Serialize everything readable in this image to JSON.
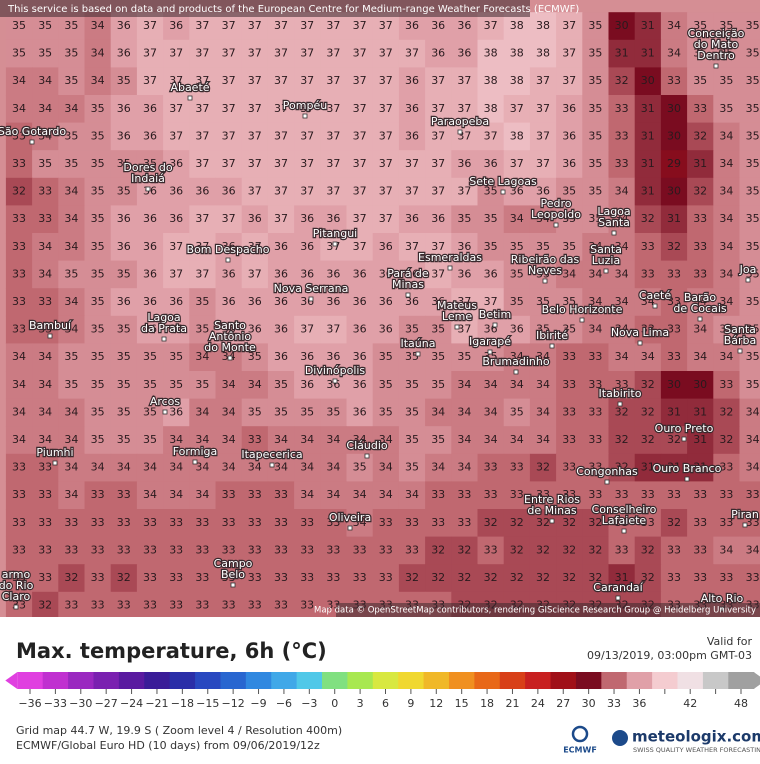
{
  "notice": "This service is based on data and products of the European Centre for Medium-range Weather Forecasts (ECMWF)",
  "attribution": "Map data © OpenStreetMap contributors, rendering GIScience Research Group @ Heidelberg University",
  "grid": {
    "rows": [
      [
        35,
        35,
        35,
        34,
        36,
        37,
        36,
        37,
        37,
        37,
        37,
        37,
        37,
        37,
        37,
        36,
        36,
        36,
        37,
        38,
        38,
        37,
        35,
        30,
        31,
        34,
        35,
        35,
        35
      ],
      [
        35,
        35,
        35,
        34,
        36,
        37,
        37,
        37,
        37,
        37,
        37,
        37,
        37,
        37,
        37,
        37,
        36,
        36,
        38,
        38,
        38,
        37,
        35,
        31,
        31,
        34,
        35,
        35,
        35
      ],
      [
        34,
        34,
        35,
        34,
        35,
        37,
        37,
        37,
        37,
        37,
        37,
        37,
        37,
        37,
        37,
        36,
        37,
        37,
        38,
        38,
        37,
        37,
        35,
        32,
        30,
        33,
        35,
        35,
        35
      ],
      [
        34,
        34,
        34,
        35,
        36,
        36,
        37,
        37,
        37,
        37,
        37,
        37,
        37,
        37,
        37,
        36,
        37,
        37,
        38,
        37,
        37,
        36,
        35,
        33,
        31,
        30,
        33,
        35,
        35
      ],
      [
        33,
        34,
        35,
        35,
        36,
        36,
        37,
        37,
        37,
        37,
        37,
        37,
        37,
        37,
        37,
        36,
        37,
        37,
        37,
        38,
        37,
        36,
        35,
        33,
        31,
        30,
        32,
        34,
        35
      ],
      [
        33,
        35,
        35,
        35,
        35,
        35,
        36,
        37,
        37,
        37,
        37,
        37,
        37,
        37,
        37,
        37,
        37,
        36,
        36,
        37,
        37,
        36,
        35,
        33,
        31,
        29,
        31,
        34,
        35
      ],
      [
        32,
        33,
        34,
        35,
        35,
        36,
        36,
        36,
        36,
        37,
        37,
        37,
        37,
        37,
        37,
        37,
        37,
        37,
        35,
        36,
        36,
        35,
        35,
        34,
        31,
        30,
        32,
        34,
        35
      ],
      [
        33,
        33,
        34,
        35,
        36,
        36,
        36,
        37,
        37,
        36,
        37,
        36,
        36,
        37,
        37,
        36,
        36,
        35,
        35,
        34,
        34,
        35,
        35,
        34,
        32,
        31,
        33,
        34,
        35
      ],
      [
        33,
        34,
        34,
        35,
        36,
        36,
        37,
        37,
        36,
        37,
        36,
        36,
        37,
        37,
        36,
        37,
        37,
        36,
        35,
        35,
        35,
        35,
        34,
        34,
        33,
        32,
        33,
        34,
        35
      ],
      [
        33,
        34,
        35,
        35,
        35,
        36,
        37,
        37,
        36,
        37,
        36,
        36,
        36,
        36,
        36,
        36,
        37,
        36,
        36,
        35,
        35,
        34,
        34,
        34,
        33,
        33,
        33,
        34,
        35
      ],
      [
        33,
        33,
        34,
        35,
        36,
        36,
        36,
        35,
        36,
        36,
        36,
        36,
        36,
        36,
        36,
        36,
        36,
        37,
        37,
        35,
        35,
        35,
        34,
        34,
        34,
        33,
        34,
        34,
        35
      ],
      [
        33,
        33,
        34,
        35,
        35,
        36,
        36,
        35,
        36,
        36,
        36,
        37,
        37,
        36,
        36,
        35,
        35,
        37,
        36,
        36,
        35,
        35,
        34,
        34,
        33,
        33,
        34,
        35,
        35
      ],
      [
        34,
        34,
        35,
        35,
        35,
        35,
        35,
        34,
        34,
        35,
        36,
        36,
        36,
        36,
        35,
        35,
        35,
        35,
        35,
        34,
        34,
        33,
        33,
        34,
        34,
        33,
        34,
        34,
        35
      ],
      [
        34,
        34,
        35,
        35,
        35,
        35,
        35,
        35,
        34,
        34,
        35,
        36,
        36,
        36,
        35,
        35,
        35,
        34,
        34,
        34,
        34,
        33,
        33,
        33,
        32,
        30,
        30,
        33,
        35
      ],
      [
        34,
        34,
        34,
        35,
        35,
        35,
        36,
        34,
        34,
        35,
        35,
        35,
        35,
        36,
        35,
        35,
        34,
        34,
        34,
        35,
        34,
        33,
        33,
        32,
        32,
        31,
        31,
        32,
        34
      ],
      [
        34,
        34,
        34,
        35,
        35,
        35,
        34,
        34,
        34,
        33,
        34,
        34,
        34,
        34,
        34,
        35,
        35,
        34,
        34,
        34,
        34,
        33,
        33,
        32,
        32,
        32,
        31,
        32,
        34
      ],
      [
        33,
        33,
        34,
        34,
        34,
        34,
        34,
        34,
        34,
        34,
        34,
        34,
        34,
        35,
        34,
        35,
        34,
        34,
        33,
        33,
        32,
        33,
        33,
        32,
        31,
        31,
        31,
        33,
        34
      ],
      [
        33,
        33,
        34,
        33,
        33,
        34,
        34,
        34,
        33,
        33,
        33,
        34,
        34,
        34,
        34,
        34,
        33,
        33,
        33,
        33,
        33,
        33,
        33,
        33,
        33,
        33,
        33,
        33,
        33
      ],
      [
        33,
        33,
        33,
        33,
        33,
        33,
        33,
        33,
        33,
        33,
        33,
        33,
        33,
        34,
        33,
        33,
        33,
        33,
        32,
        32,
        32,
        32,
        32,
        33,
        33,
        32,
        33,
        33,
        33
      ],
      [
        33,
        33,
        33,
        33,
        33,
        33,
        33,
        33,
        33,
        33,
        33,
        33,
        33,
        33,
        33,
        33,
        32,
        32,
        33,
        32,
        32,
        32,
        32,
        33,
        32,
        33,
        33,
        34,
        34
      ],
      [
        33,
        33,
        32,
        33,
        32,
        33,
        33,
        33,
        33,
        33,
        33,
        33,
        33,
        33,
        33,
        32,
        32,
        32,
        32,
        32,
        32,
        32,
        32,
        31,
        32,
        33,
        33,
        33,
        33
      ],
      [
        33,
        32,
        33,
        33,
        33,
        33,
        33,
        33,
        33,
        33,
        33,
        33,
        33,
        33,
        33,
        33,
        33,
        32,
        32,
        32,
        32,
        32,
        32,
        32,
        32,
        33,
        33,
        33,
        33
      ]
    ]
  },
  "towns": [
    {
      "lines": [
        "Abaeté"
      ]
    },
    {
      "lines": [
        "Pompéu"
      ]
    },
    {
      "lines": [
        "Paraopeba"
      ]
    },
    {
      "lines": [
        "São Gotardo"
      ]
    },
    {
      "lines": [
        "Dores do",
        "Indaiá"
      ]
    },
    {
      "lines": [
        "Sete Lagoas"
      ]
    },
    {
      "lines": [
        "Pedro",
        "Leopoldo"
      ]
    },
    {
      "lines": [
        "Lagoa",
        "Santa"
      ]
    },
    {
      "lines": [
        "Bom Despacho"
      ]
    },
    {
      "lines": [
        "Pitangui"
      ]
    },
    {
      "lines": [
        "Esmeraldas"
      ]
    },
    {
      "lines": [
        "Ribeirão das",
        "Neves"
      ]
    },
    {
      "lines": [
        "Santa",
        "Luzia"
      ]
    },
    {
      "lines": [
        "Nova Serrana"
      ]
    },
    {
      "lines": [
        "Pará de",
        "Minas"
      ]
    },
    {
      "lines": [
        "Mateus",
        "Leme"
      ]
    },
    {
      "lines": [
        "Betim"
      ]
    },
    {
      "lines": [
        "Belo Horizonte"
      ]
    },
    {
      "lines": [
        "Caeté"
      ]
    },
    {
      "lines": [
        "Barão",
        "de Cocais"
      ]
    },
    {
      "lines": [
        "Bambuí"
      ]
    },
    {
      "lines": [
        "Lagoa",
        "da Prata"
      ]
    },
    {
      "lines": [
        "Santo",
        "Antônio",
        "do Monte"
      ]
    },
    {
      "lines": [
        "Itaúna"
      ]
    },
    {
      "lines": [
        "Igarapé"
      ]
    },
    {
      "lines": [
        "Ibirité"
      ]
    },
    {
      "lines": [
        "Nova Lima"
      ]
    },
    {
      "lines": [
        "Santa",
        "Bárba"
      ]
    },
    {
      "lines": [
        "Divinópolis"
      ]
    },
    {
      "lines": [
        "Brumadinho"
      ]
    },
    {
      "lines": [
        "Arcos"
      ]
    },
    {
      "lines": [
        "Itabirito"
      ]
    },
    {
      "lines": [
        "Ouro Preto"
      ]
    },
    {
      "lines": [
        "Piumhi"
      ]
    },
    {
      "lines": [
        "Formiga"
      ]
    },
    {
      "lines": [
        "Itapecerica"
      ]
    },
    {
      "lines": [
        "Cláudio"
      ]
    },
    {
      "lines": [
        "Congonhas"
      ]
    },
    {
      "lines": [
        "Ouro Branco"
      ]
    },
    {
      "lines": [
        "Oliveira"
      ]
    },
    {
      "lines": [
        "Entre Rios",
        "de Minas"
      ]
    },
    {
      "lines": [
        "Conselheiro",
        "Lafaiete"
      ]
    },
    {
      "lines": [
        "Campo",
        "Belo"
      ]
    },
    {
      "lines": [
        "Carandaí"
      ]
    },
    {
      "lines": [
        "Alto Rio"
      ]
    },
    {
      "lines": [
        "Conceição",
        "do Mato",
        "Dentro"
      ]
    },
    {
      "lines": [
        "armo",
        "do Rio",
        "Claro"
      ]
    },
    {
      "lines": [
        "Joa"
      ]
    },
    {
      "lines": [
        "Piran"
      ]
    }
  ],
  "legend": {
    "title": "Max. temperature, 6h (°C)",
    "valid_label": "Valid for",
    "valid_time": "09/13/2019, 03:00pm GMT-03",
    "ticks": [
      -36,
      -33,
      -30,
      -27,
      -24,
      -21,
      -18,
      -15,
      -12,
      -9,
      -6,
      -3,
      0,
      3,
      6,
      9,
      12,
      15,
      18,
      21,
      24,
      27,
      30,
      33,
      36,
      39,
      42,
      45,
      48
    ],
    "tick_labels": [
      "−36",
      "−33",
      "−30",
      "−27",
      "−24",
      "−21",
      "−18",
      "−15",
      "−12",
      "−9",
      "−6",
      "−3",
      "0",
      "3",
      "6",
      "9",
      "12",
      "15",
      "18",
      "21",
      "24",
      "27",
      "30",
      "33",
      "36",
      "",
      "42",
      "",
      "48"
    ],
    "colors": [
      "#e040e0",
      "#c030d0",
      "#9a28c0",
      "#7a20b0",
      "#5a1aa0",
      "#3a1c98",
      "#2a2ea8",
      "#2848c0",
      "#2866d0",
      "#3088e0",
      "#40a8e8",
      "#50c8e8",
      "#80e080",
      "#a8e850",
      "#d8e840",
      "#f0d830",
      "#f0b828",
      "#f09020",
      "#e86818",
      "#d84018",
      "#c82020",
      "#a01018",
      "#7a0c20",
      "#c06870",
      "#e0a0a8",
      "#f4ccd0",
      "#f0e0e4",
      "#c8c8c8",
      "#a0a0a0"
    ]
  },
  "footer": {
    "grid_info": "Grid map 44.7 W, 19.9 S ( Zoom level 4 / Resolution 400m)",
    "model": "ECMWF/Global Euro HD (10 days) from 09/06/2019/12z",
    "brand": "meteologix.com",
    "slogan": "SWISS QUALITY WEATHER FORECASTING",
    "ecmwf": "ECMWF"
  }
}
